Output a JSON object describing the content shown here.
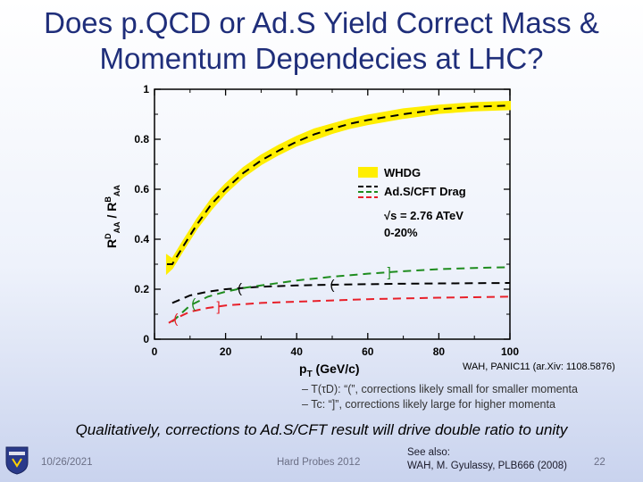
{
  "slide": {
    "title_line1": "Does p.QCD or Ad.S Yield Correct Mass &",
    "title_line2": "Momentum Dependecies at LHC?",
    "reference": "WAH, PANIC11 (ar.Xiv: 1108.5876)",
    "bullet1": "– T(τD): “(”, corrections likely small for smaller momenta",
    "bullet2": "– Tc: “]”, corrections likely large for higher momenta",
    "conclusion": "Qualitatively, corrections to Ad.S/CFT result will drive double ratio to unity",
    "date": "10/26/2021",
    "conference": "Hard Probes 2012",
    "see_also_line1": "See also:",
    "see_also_line2": "WAH, M. Gyulassy, PLB666 (2008)",
    "page_number": "22"
  },
  "colors": {
    "title": "#1f2e7a",
    "whdg_band": "#ffee00",
    "black_curve": "#000000",
    "green_curve": "#1e8c1e",
    "red_curve": "#e8202a"
  },
  "chart_data": {
    "type": "line",
    "xlabel": "pT (GeV/c)",
    "ylabel": "R_AA^D / R_AA^B",
    "xlim": [
      0,
      100
    ],
    "ylim": [
      0,
      1
    ],
    "xticks": [
      "0",
      "20",
      "40",
      "60",
      "80",
      "100"
    ],
    "yticks": [
      "0",
      "0.2",
      "0.4",
      "0.6",
      "0.8",
      "1"
    ],
    "legend": [
      "WHDG",
      "Ad.S/CFT Drag"
    ],
    "annotations": [
      "√s = 2.76 ATeV",
      "0-20%"
    ],
    "series": [
      {
        "name": "WHDG",
        "style": "band",
        "color": "#ffee00",
        "x": [
          3.5,
          5,
          8,
          12,
          16,
          20,
          25,
          30,
          35,
          40,
          45,
          50,
          55,
          60,
          70,
          80,
          90,
          100
        ],
        "lower": [
          0.265,
          0.285,
          0.355,
          0.445,
          0.52,
          0.585,
          0.65,
          0.7,
          0.74,
          0.775,
          0.8,
          0.825,
          0.845,
          0.86,
          0.885,
          0.905,
          0.915,
          0.92
        ],
        "upper": [
          0.335,
          0.32,
          0.39,
          0.48,
          0.56,
          0.62,
          0.685,
          0.735,
          0.775,
          0.81,
          0.84,
          0.86,
          0.88,
          0.895,
          0.92,
          0.935,
          0.945,
          0.95
        ]
      },
      {
        "name": "WHDG central",
        "color": "#000000",
        "style": "dashed",
        "x": [
          3.5,
          5,
          8,
          12,
          16,
          20,
          25,
          30,
          35,
          40,
          45,
          50,
          55,
          60,
          70,
          80,
          90,
          100
        ],
        "values": [
          0.3,
          0.3,
          0.37,
          0.46,
          0.54,
          0.6,
          0.665,
          0.715,
          0.755,
          0.79,
          0.82,
          0.842,
          0.862,
          0.877,
          0.9,
          0.92,
          0.93,
          0.935
        ]
      },
      {
        "name": "Ad.S/CFT Drag",
        "color": "#000000",
        "style": "dashed",
        "x": [
          5,
          10,
          15,
          20,
          25,
          30,
          40,
          50,
          60,
          70,
          80,
          90,
          100
        ],
        "values": [
          0.145,
          0.175,
          0.19,
          0.2,
          0.205,
          0.21,
          0.215,
          0.218,
          0.22,
          0.222,
          0.223,
          0.224,
          0.225
        ]
      },
      {
        "name": "Ad.S/CFT Drag (green)",
        "color": "#1e8c1e",
        "style": "dashed",
        "x": [
          5,
          10,
          15,
          20,
          25,
          30,
          40,
          50,
          60,
          70,
          80,
          90,
          100
        ],
        "values": [
          0.07,
          0.135,
          0.17,
          0.19,
          0.205,
          0.215,
          0.235,
          0.25,
          0.262,
          0.272,
          0.28,
          0.285,
          0.288
        ]
      },
      {
        "name": "Ad.S/CFT Drag (red)",
        "color": "#e8202a",
        "style": "dashed",
        "x": [
          4,
          7,
          10,
          15,
          20,
          25,
          30,
          40,
          50,
          60,
          70,
          80,
          90,
          100
        ],
        "values": [
          0.065,
          0.09,
          0.11,
          0.125,
          0.135,
          0.14,
          0.145,
          0.15,
          0.155,
          0.16,
          0.163,
          0.166,
          0.168,
          0.17
        ]
      }
    ],
    "markers": [
      {
        "series": "Ad.S/CFT Drag",
        "x": 24,
        "symbol": "("
      },
      {
        "series": "Ad.S/CFT Drag",
        "x": 50,
        "symbol": "("
      },
      {
        "series": "Ad.S/CFT Drag (green)",
        "x": 11,
        "symbol": "("
      },
      {
        "series": "Ad.S/CFT Drag (green)",
        "x": 66,
        "symbol": "]"
      },
      {
        "series": "Ad.S/CFT Drag (red)",
        "x": 6,
        "symbol": "("
      },
      {
        "series": "Ad.S/CFT Drag (red)",
        "x": 18,
        "symbol": "]"
      }
    ]
  }
}
